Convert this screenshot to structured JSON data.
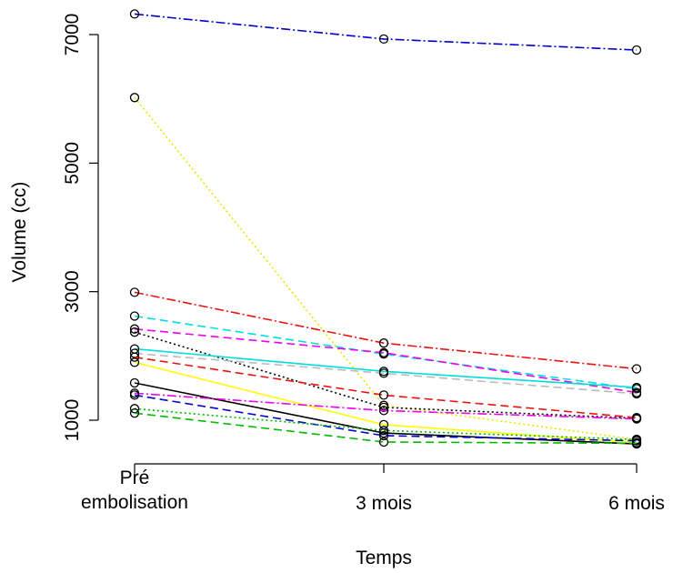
{
  "chart_data": {
    "type": "line",
    "xlabel": "Temps",
    "ylabel": "Volume (cc)",
    "categories": [
      [
        "Pré",
        "embolisation"
      ],
      [
        "3 mois"
      ],
      [
        "6 mois"
      ]
    ],
    "yticks": [
      1000,
      3000,
      5000,
      7000
    ],
    "ylim": [
      620,
      7350
    ],
    "grid": false,
    "legend": "none",
    "series": [
      {
        "color": "#0000cc",
        "dash": "10,3,2,3",
        "values": [
          7320,
          6930,
          6760
        ]
      },
      {
        "color": "#e6e600",
        "dash": "2,3",
        "values": [
          6020,
          1230,
          700
        ]
      },
      {
        "color": "#ee1111",
        "dash": "10,3,2,3",
        "values": [
          2990,
          2200,
          1800
        ]
      },
      {
        "color": "#00dddd",
        "dash": "9,5",
        "values": [
          2620,
          2030,
          1490
        ]
      },
      {
        "color": "#ee00ee",
        "dash": "9,5",
        "values": [
          2420,
          2050,
          1430
        ]
      },
      {
        "color": "#000000",
        "dash": "2,3",
        "values": [
          2370,
          1200,
          1030
        ]
      },
      {
        "color": "#00dddd",
        "dash": "",
        "values": [
          2110,
          1760,
          1510
        ]
      },
      {
        "color": "#bbbbbb",
        "dash": "9,5",
        "values": [
          2040,
          1730,
          1410
        ]
      },
      {
        "color": "#ee1111",
        "dash": "9,5",
        "values": [
          1980,
          1390,
          1040
        ]
      },
      {
        "color": "#ffff00",
        "dash": "",
        "values": [
          1900,
          930,
          650
        ]
      },
      {
        "color": "#000000",
        "dash": "",
        "values": [
          1580,
          800,
          630
        ]
      },
      {
        "color": "#ee00ee",
        "dash": "10,3,2,3",
        "values": [
          1420,
          1150,
          1020
        ]
      },
      {
        "color": "#0000cc",
        "dash": "9,5",
        "values": [
          1390,
          760,
          680
        ]
      },
      {
        "color": "#00bb00",
        "dash": "2,3",
        "values": [
          1180,
          840,
          700
        ]
      },
      {
        "color": "#00bb00",
        "dash": "9,5",
        "values": [
          1110,
          660,
          640
        ]
      }
    ]
  }
}
